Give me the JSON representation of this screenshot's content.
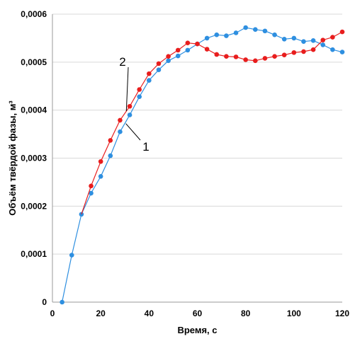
{
  "chart_data": {
    "type": "scatter",
    "title": "",
    "xlabel": "Время, с",
    "ylabel": "Объём твёрдой фазы, м³",
    "xlim": [
      0,
      120
    ],
    "ylim": [
      0,
      0.0006
    ],
    "x_ticks": [
      0,
      20,
      40,
      60,
      80,
      100,
      120
    ],
    "x_tick_labels": [
      "0",
      "20",
      "40",
      "60",
      "80",
      "100",
      "120"
    ],
    "y_ticks": [
      0,
      0.0001,
      0.0002,
      0.0003,
      0.0004,
      0.0005,
      0.0006
    ],
    "y_tick_labels": [
      "0",
      "0,0001",
      "0,0002",
      "0,0003",
      "0,0004",
      "0,0005",
      "0,0006"
    ],
    "grid": "horizontal",
    "legend": "none",
    "series": [
      {
        "name": "1",
        "color": "#2e8fe0",
        "points": [
          [
            4,
            0.0
          ],
          [
            8,
            9.8e-05
          ],
          [
            12,
            0.000183
          ],
          [
            16,
            0.000227
          ],
          [
            20,
            0.000262
          ],
          [
            24,
            0.000305
          ],
          [
            28,
            0.000355
          ],
          [
            32,
            0.00039
          ],
          [
            36,
            0.000428
          ],
          [
            40,
            0.000462
          ],
          [
            44,
            0.000484
          ],
          [
            48,
            0.000503
          ],
          [
            52,
            0.000513
          ],
          [
            56,
            0.000525
          ],
          [
            60,
            0.000538
          ],
          [
            64,
            0.00055
          ],
          [
            68,
            0.000557
          ],
          [
            72,
            0.000555
          ],
          [
            76,
            0.000561
          ],
          [
            80,
            0.000572
          ],
          [
            84,
            0.000568
          ],
          [
            88,
            0.000565
          ],
          [
            92,
            0.000557
          ],
          [
            96,
            0.000548
          ],
          [
            100,
            0.00055
          ],
          [
            104,
            0.000543
          ],
          [
            108,
            0.000545
          ],
          [
            112,
            0.000536
          ],
          [
            116,
            0.000526
          ],
          [
            120,
            0.000521
          ]
        ]
      },
      {
        "name": "2",
        "color": "#e81d1d",
        "points": [
          [
            16,
            0.000242
          ],
          [
            20,
            0.000293
          ],
          [
            24,
            0.000337
          ],
          [
            28,
            0.000379
          ],
          [
            32,
            0.000408
          ],
          [
            36,
            0.000443
          ],
          [
            40,
            0.000476
          ],
          [
            44,
            0.000497
          ],
          [
            48,
            0.000512
          ],
          [
            52,
            0.000525
          ],
          [
            56,
            0.00054
          ],
          [
            60,
            0.000538
          ],
          [
            64,
            0.000527
          ],
          [
            68,
            0.000516
          ],
          [
            72,
            0.000512
          ],
          [
            76,
            0.000511
          ],
          [
            80,
            0.000505
          ],
          [
            84,
            0.000503
          ],
          [
            88,
            0.000508
          ],
          [
            92,
            0.000512
          ],
          [
            96,
            0.000515
          ],
          [
            100,
            0.00052
          ],
          [
            104,
            0.000522
          ],
          [
            108,
            0.000526
          ],
          [
            112,
            0.000546
          ],
          [
            116,
            0.000552
          ],
          [
            120,
            0.000563
          ]
        ]
      }
    ],
    "annotations": [
      {
        "text": "1",
        "series": "1"
      },
      {
        "text": "2",
        "series": "2"
      }
    ]
  }
}
